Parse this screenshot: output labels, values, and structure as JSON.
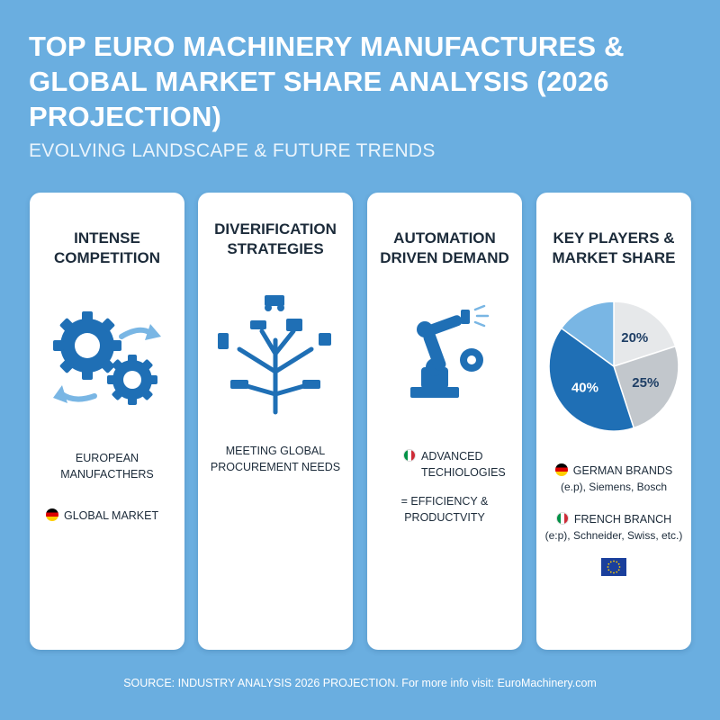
{
  "header": {
    "title": "TOP EURO MACHINERY MANUFACTURES & GLOBAL MARKET SHARE ANALYSIS (2026 PROJECTION)",
    "subtitle": "EVOLVING LANDSCAPE & FUTURE TRENDS"
  },
  "cards": [
    {
      "title_lines": [
        "INTENSE",
        "COMPETITION"
      ],
      "icon": "gears-cycle-icon",
      "lines": [
        "EUROPEAN",
        "MANUFACTHERS"
      ],
      "flag_line": "GLOBAL MARKET",
      "flag": "de-flag-icon"
    },
    {
      "title_lines": [
        "DIVERIFICATION",
        "STRATEGIES"
      ],
      "icon": "diversification-tree-icon",
      "lines": [
        "MEETING GLOBAL",
        "PROCUREMENT NEEDS"
      ]
    },
    {
      "title_lines": [
        "AUTOMATION",
        "DRIVEN DEMAND"
      ],
      "icon": "robot-arm-icon",
      "flag_lines": [
        "ADVANCED",
        "TECHIOLOGIES"
      ],
      "flag": "it-flag-icon",
      "lines": [
        "= EFFICIENCY &",
        "PRODUCTVITY"
      ]
    },
    {
      "title_lines": [
        "KEY PLAYERS &",
        "MARKET SHARE"
      ],
      "icon": "pie-chart-icon",
      "legend": [
        {
          "label": "GERMAN BRANDS",
          "detail": "(e.p), Siemens, Bosch",
          "flag": "de-flag-icon"
        },
        {
          "label": "FRENCH BRANCH",
          "detail": "(e:p), Schneider, Swiss, etc.)",
          "flag": "it-flag-icon"
        }
      ],
      "eu_flag": "eu-flag-icon"
    }
  ],
  "chart_data": {
    "type": "pie",
    "title": "",
    "slices": [
      {
        "label": "40%",
        "value": 40,
        "color": "#1f6fb5"
      },
      {
        "label": "25%",
        "value": 25,
        "color": "#c2c7cc"
      },
      {
        "label": "20%",
        "value": 20,
        "color": "#e6e8ea"
      },
      {
        "label": "",
        "value": 15,
        "color": "#79b6e4"
      }
    ]
  },
  "colors": {
    "background": "#6aaee0",
    "accent": "#1f6fb5",
    "text": "#1c2b3a"
  },
  "footer": {
    "source": "SOURCE: INDUSTRY ANALYSIS 2026 PROJECTION. For more info visit: EuroMachinery.com"
  }
}
